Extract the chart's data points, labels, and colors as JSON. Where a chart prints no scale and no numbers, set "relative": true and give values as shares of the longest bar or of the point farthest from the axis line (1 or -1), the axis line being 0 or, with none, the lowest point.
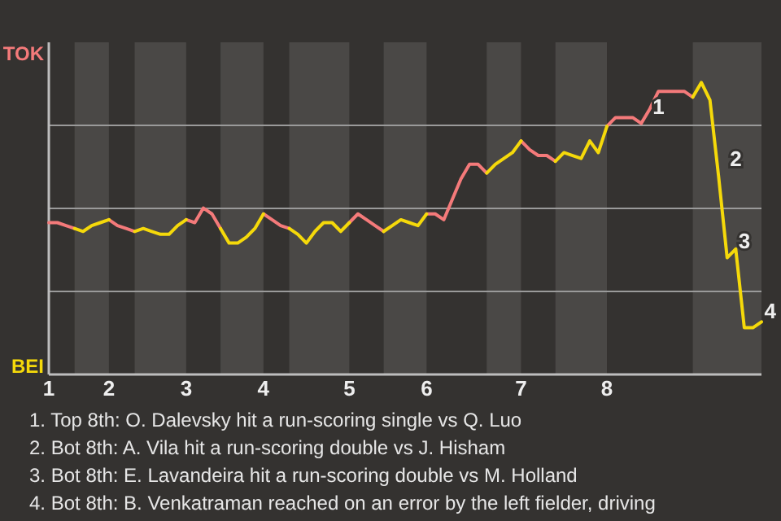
{
  "chart_data": {
    "type": "line",
    "relative": true,
    "categories": [
      "1",
      null,
      null,
      null,
      null,
      null,
      null,
      "2",
      null,
      null,
      null,
      null,
      null,
      null,
      null,
      null,
      "3",
      null,
      null,
      null,
      null,
      null,
      null,
      null,
      null,
      "4",
      null,
      null,
      null,
      null,
      null,
      null,
      null,
      null,
      null,
      "5",
      null,
      null,
      null,
      null,
      null,
      null,
      null,
      null,
      "6",
      null,
      null,
      null,
      null,
      null,
      null,
      null,
      null,
      null,
      null,
      "7",
      null,
      null,
      null,
      null,
      null,
      null,
      null,
      null,
      null,
      "8",
      null,
      null,
      null,
      null,
      null,
      null,
      null,
      null,
      null,
      null,
      null,
      null,
      null,
      null,
      null,
      null,
      null,
      null
    ],
    "grid": "y",
    "marker": "none",
    "line_style": "solid",
    "series": [
      {
        "color": "#f47a7a",
        "values": [
          0.52,
          0.52,
          0.51,
          0.5,
          null,
          null,
          null,
          0.53,
          0.51,
          0.5,
          0.49,
          null,
          null,
          null,
          null,
          null,
          0.53,
          0.52,
          0.57,
          0.55,
          0.5,
          null,
          null,
          null,
          null,
          0.55,
          0.53,
          0.51,
          0.5,
          null,
          null,
          null,
          null,
          null,
          null,
          0.52,
          0.55,
          0.53,
          0.51,
          0.49,
          null,
          null,
          null,
          null,
          0.55,
          0.55,
          0.53,
          0.6,
          0.67,
          0.72,
          0.72,
          0.69,
          null,
          null,
          null,
          0.8,
          0.77,
          0.75,
          0.75,
          0.73,
          null,
          null,
          null,
          null,
          null,
          0.85,
          0.88,
          0.88,
          0.88,
          0.86,
          0.91,
          0.97,
          0.97,
          0.97,
          0.97,
          0.95,
          null,
          null,
          null,
          null,
          null,
          null,
          null,
          null
        ]
      },
      {
        "color": "#f5d90a",
        "values": [
          null,
          null,
          null,
          0.5,
          0.49,
          0.51,
          0.52,
          0.53,
          null,
          null,
          0.49,
          0.5,
          0.49,
          0.48,
          0.48,
          0.51,
          0.53,
          null,
          null,
          null,
          0.5,
          0.45,
          0.45,
          0.47,
          0.5,
          0.55,
          null,
          null,
          0.5,
          0.48,
          0.45,
          0.49,
          0.52,
          0.52,
          0.49,
          0.52,
          null,
          null,
          null,
          0.49,
          0.51,
          0.53,
          0.52,
          0.51,
          0.55,
          null,
          null,
          null,
          null,
          null,
          null,
          0.69,
          0.72,
          0.74,
          0.76,
          0.8,
          null,
          null,
          null,
          0.73,
          0.76,
          0.75,
          0.74,
          0.8,
          0.76,
          0.85,
          null,
          null,
          null,
          null,
          null,
          null,
          null,
          null,
          null,
          0.95,
          1,
          0.94,
          0.68,
          0.4,
          0.43,
          0.16,
          0.16,
          0.18
        ]
      }
    ],
    "annotations": [
      "TOK",
      "BEI",
      "1",
      "2",
      "3",
      "4",
      "1. Top 8th: O. Dalevsky hit a run-scoring single vs Q. Luo",
      "2. Bot 8th: A. Vila hit a run-scoring double vs J. Hisham",
      "3. Bot 8th: E. Lavandeira hit a run-scoring double vs M. Holland",
      "4. Bot 8th: B. Venkatraman reached on an error by the left fielder, driving"
    ]
  }
}
